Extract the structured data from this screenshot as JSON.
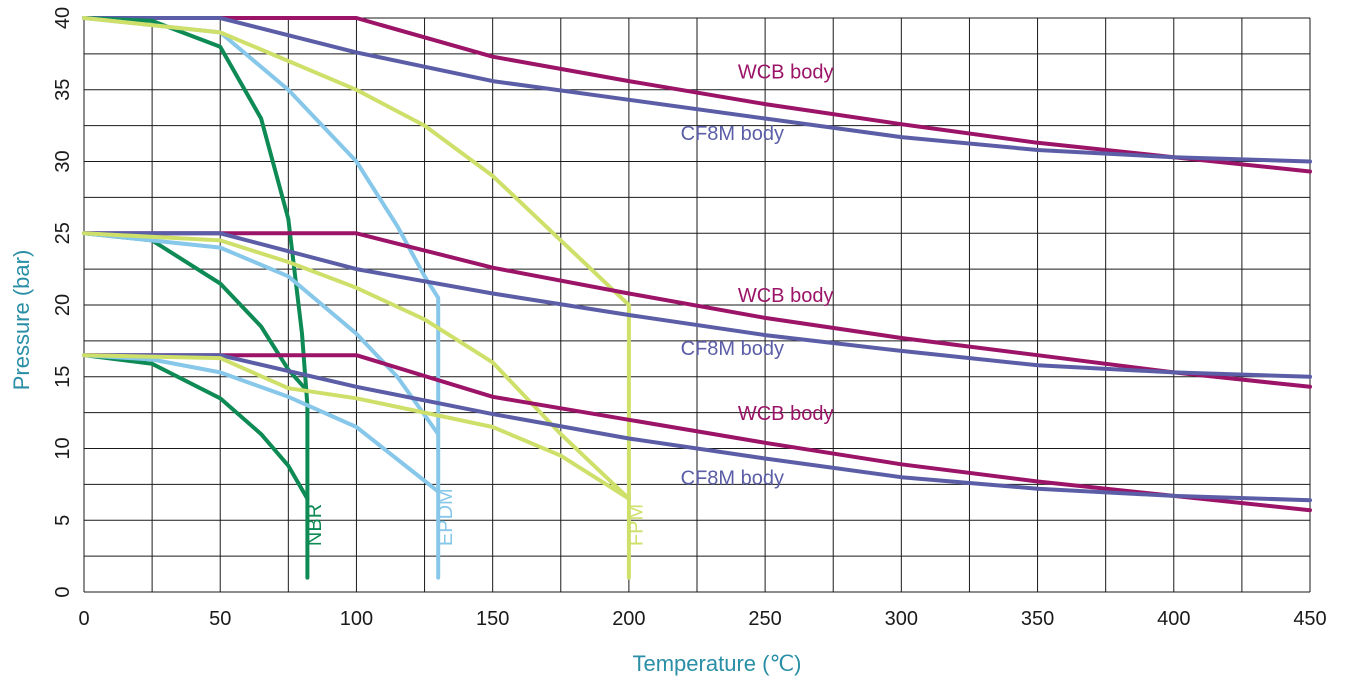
{
  "chart_data": {
    "type": "line",
    "xlabel": "Temperature (℃)",
    "ylabel": "Pressure (bar)",
    "xlim": [
      0,
      450
    ],
    "ylim": [
      0,
      40
    ],
    "x_ticks": [
      0,
      50,
      100,
      150,
      200,
      250,
      300,
      350,
      400,
      450
    ],
    "y_ticks": [
      0,
      5,
      10,
      15,
      20,
      25,
      30,
      35,
      40
    ],
    "grid": true,
    "colors": {
      "wcb": "#9b1468",
      "cf8m": "#5b5ea6",
      "nbr": "#0e8a55",
      "epdm": "#86c7ea",
      "fpm": "#cfe06a",
      "axis_title": "#2a8fa6",
      "grid": "#1a1a1a"
    },
    "series": [
      {
        "group": "40 bar",
        "label": "WCB body",
        "color_key": "wcb",
        "points": [
          [
            0,
            40
          ],
          [
            100,
            40
          ],
          [
            150,
            37.3
          ],
          [
            200,
            35.6
          ],
          [
            250,
            34
          ],
          [
            300,
            32.6
          ],
          [
            350,
            31.3
          ],
          [
            400,
            30.3
          ],
          [
            450,
            29.3
          ]
        ]
      },
      {
        "group": "40 bar",
        "label": "CF8M body",
        "color_key": "cf8m",
        "points": [
          [
            0,
            40
          ],
          [
            50,
            40
          ],
          [
            100,
            37.6
          ],
          [
            150,
            35.6
          ],
          [
            200,
            34.3
          ],
          [
            250,
            33
          ],
          [
            300,
            31.7
          ],
          [
            350,
            30.8
          ],
          [
            400,
            30.3
          ],
          [
            450,
            30
          ]
        ]
      },
      {
        "group": "40 bar",
        "label": "NBR",
        "color_key": "nbr",
        "points": [
          [
            0,
            40
          ],
          [
            25,
            39.8
          ],
          [
            50,
            38
          ],
          [
            65,
            33
          ],
          [
            75,
            26
          ],
          [
            80,
            18
          ],
          [
            82,
            13
          ],
          [
            82,
            1
          ]
        ]
      },
      {
        "group": "40 bar",
        "label": "EPDM",
        "color_key": "epdm",
        "points": [
          [
            0,
            40
          ],
          [
            50,
            39
          ],
          [
            75,
            35
          ],
          [
            100,
            30
          ],
          [
            115,
            25.5
          ],
          [
            125,
            22
          ],
          [
            130,
            20.5
          ],
          [
            130,
            1
          ]
        ]
      },
      {
        "group": "40 bar",
        "label": "FPM",
        "color_key": "fpm",
        "points": [
          [
            0,
            40
          ],
          [
            50,
            39
          ],
          [
            75,
            37
          ],
          [
            100,
            35
          ],
          [
            125,
            32.5
          ],
          [
            150,
            29
          ],
          [
            175,
            24.5
          ],
          [
            200,
            20
          ],
          [
            200,
            1
          ]
        ]
      },
      {
        "group": "25 bar",
        "label": "WCB body",
        "color_key": "wcb",
        "points": [
          [
            0,
            25
          ],
          [
            100,
            25
          ],
          [
            150,
            22.6
          ],
          [
            200,
            20.8
          ],
          [
            250,
            19.1
          ],
          [
            300,
            17.7
          ],
          [
            350,
            16.5
          ],
          [
            400,
            15.3
          ],
          [
            450,
            14.3
          ]
        ]
      },
      {
        "group": "25 bar",
        "label": "CF8M body",
        "color_key": "cf8m",
        "points": [
          [
            0,
            25
          ],
          [
            50,
            25
          ],
          [
            100,
            22.5
          ],
          [
            150,
            20.8
          ],
          [
            200,
            19.3
          ],
          [
            250,
            17.9
          ],
          [
            300,
            16.8
          ],
          [
            350,
            15.8
          ],
          [
            400,
            15.3
          ],
          [
            450,
            15
          ]
        ]
      },
      {
        "group": "25 bar",
        "label": "NBR",
        "color_key": "nbr",
        "points": [
          [
            0,
            25
          ],
          [
            25,
            24.5
          ],
          [
            50,
            21.5
          ],
          [
            65,
            18.5
          ],
          [
            75,
            15.5
          ],
          [
            82,
            14
          ]
        ]
      },
      {
        "group": "25 bar",
        "label": "EPDM",
        "color_key": "epdm",
        "points": [
          [
            0,
            25
          ],
          [
            50,
            24
          ],
          [
            75,
            22
          ],
          [
            100,
            18
          ],
          [
            115,
            15
          ],
          [
            130,
            11
          ]
        ]
      },
      {
        "group": "25 bar",
        "label": "FPM",
        "color_key": "fpm",
        "points": [
          [
            0,
            25
          ],
          [
            50,
            24.5
          ],
          [
            75,
            23
          ],
          [
            100,
            21.2
          ],
          [
            125,
            19
          ],
          [
            150,
            16
          ],
          [
            175,
            11
          ],
          [
            200,
            6.5
          ]
        ]
      },
      {
        "group": "16.5 bar",
        "label": "WCB body",
        "color_key": "wcb",
        "points": [
          [
            0,
            16.5
          ],
          [
            100,
            16.5
          ],
          [
            150,
            13.6
          ],
          [
            200,
            12
          ],
          [
            250,
            10.4
          ],
          [
            300,
            8.9
          ],
          [
            350,
            7.7
          ],
          [
            400,
            6.7
          ],
          [
            450,
            5.7
          ]
        ]
      },
      {
        "group": "16.5 bar",
        "label": "CF8M body",
        "color_key": "cf8m",
        "points": [
          [
            0,
            16.5
          ],
          [
            50,
            16.5
          ],
          [
            100,
            14.3
          ],
          [
            150,
            12.4
          ],
          [
            200,
            10.7
          ],
          [
            250,
            9.3
          ],
          [
            300,
            8
          ],
          [
            350,
            7.2
          ],
          [
            400,
            6.7
          ],
          [
            450,
            6.4
          ]
        ]
      },
      {
        "group": "16.5 bar",
        "label": "NBR",
        "color_key": "nbr",
        "points": [
          [
            0,
            16.5
          ],
          [
            25,
            15.9
          ],
          [
            50,
            13.5
          ],
          [
            65,
            11
          ],
          [
            75,
            8.8
          ],
          [
            82,
            6.5
          ]
        ]
      },
      {
        "group": "16.5 bar",
        "label": "EPDM",
        "color_key": "epdm",
        "points": [
          [
            0,
            16.5
          ],
          [
            25,
            16.2
          ],
          [
            50,
            15.3
          ],
          [
            75,
            13.6
          ],
          [
            100,
            11.5
          ],
          [
            120,
            8.5
          ],
          [
            130,
            7
          ]
        ]
      },
      {
        "group": "16.5 bar",
        "label": "FPM",
        "color_key": "fpm",
        "points": [
          [
            0,
            16.5
          ],
          [
            50,
            16.3
          ],
          [
            75,
            14.2
          ],
          [
            100,
            13.5
          ],
          [
            150,
            11.5
          ],
          [
            175,
            9.5
          ],
          [
            200,
            6.5
          ]
        ]
      }
    ],
    "annotations": [
      {
        "text": "WCB body",
        "x": 240,
        "y": 35.8,
        "color_key": "wcb",
        "rotate": false
      },
      {
        "text": "CF8M body",
        "x": 219,
        "y": 31.5,
        "color_key": "cf8m",
        "rotate": false
      },
      {
        "text": "WCB body",
        "x": 240,
        "y": 20.2,
        "color_key": "wcb",
        "rotate": false
      },
      {
        "text": "CF8M body",
        "x": 219,
        "y": 16.5,
        "color_key": "cf8m",
        "rotate": false
      },
      {
        "text": "WCB body",
        "x": 240,
        "y": 12,
        "color_key": "wcb",
        "rotate": false
      },
      {
        "text": "CF8M body",
        "x": 219,
        "y": 7.5,
        "color_key": "cf8m",
        "rotate": false
      },
      {
        "text": "NBR",
        "x": 87,
        "y": 3.2,
        "color_key": "nbr",
        "rotate": true
      },
      {
        "text": "EPDM",
        "x": 135,
        "y": 3.2,
        "color_key": "epdm",
        "rotate": true
      },
      {
        "text": "FPM",
        "x": 205,
        "y": 3.2,
        "color_key": "fpm",
        "rotate": true
      }
    ]
  }
}
